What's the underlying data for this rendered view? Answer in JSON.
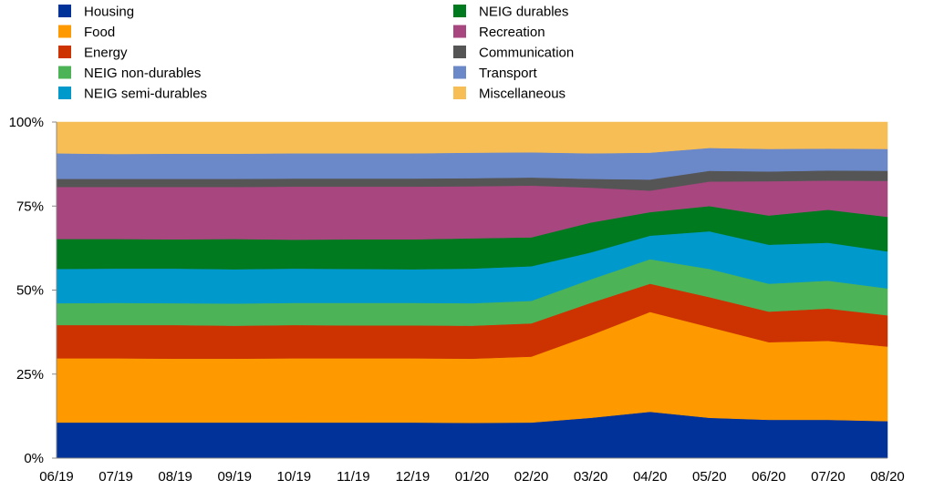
{
  "chart_data": {
    "type": "area",
    "stacked": true,
    "title": "",
    "xlabel": "",
    "ylabel": "",
    "ylim": [
      0,
      100
    ],
    "y_ticks": [
      "0%",
      "25%",
      "50%",
      "75%",
      "100%"
    ],
    "grid": false,
    "legend_position": "top",
    "categories": [
      "06/19",
      "07/19",
      "08/19",
      "09/19",
      "10/19",
      "11/19",
      "12/19",
      "01/20",
      "02/20",
      "03/20",
      "04/20",
      "05/20",
      "06/20",
      "07/20",
      "08/20"
    ],
    "series": [
      {
        "name": "Housing",
        "color": "#003299",
        "values": [
          10.6,
          10.6,
          10.6,
          10.6,
          10.6,
          10.6,
          10.6,
          10.5,
          10.6,
          12.0,
          13.8,
          12.0,
          11.4,
          11.4,
          11.0
        ]
      },
      {
        "name": "Food",
        "color": "#FF9900",
        "values": [
          19.1,
          19.1,
          19.0,
          19.0,
          19.1,
          19.1,
          19.1,
          19.1,
          19.6,
          24.6,
          29.7,
          27.0,
          23.1,
          23.5,
          22.2
        ]
      },
      {
        "name": "Energy",
        "color": "#CC3300",
        "values": [
          9.9,
          9.9,
          10.0,
          9.8,
          9.9,
          9.8,
          9.8,
          9.8,
          9.9,
          9.6,
          8.4,
          8.9,
          9.1,
          9.6,
          9.3
        ]
      },
      {
        "name": "NEIG non-durables",
        "color": "#4DB357",
        "values": [
          6.5,
          6.6,
          6.5,
          6.6,
          6.6,
          6.7,
          6.7,
          6.7,
          6.7,
          7.0,
          7.3,
          8.4,
          8.3,
          8.3,
          8.0
        ]
      },
      {
        "name": "NEIG semi-durables",
        "color": "#0099CC",
        "values": [
          10.2,
          10.2,
          10.3,
          10.2,
          10.2,
          10.1,
          10.0,
          10.3,
          10.3,
          8.0,
          7.0,
          11.2,
          11.6,
          11.3,
          11.0
        ]
      },
      {
        "name": "NEIG durables",
        "color": "#007A1F",
        "values": [
          8.9,
          8.8,
          8.7,
          9.0,
          8.6,
          8.8,
          8.9,
          9.0,
          8.6,
          8.9,
          7.0,
          7.5,
          8.7,
          9.8,
          10.3
        ]
      },
      {
        "name": "Recreation",
        "color": "#A8467F",
        "values": [
          15.5,
          15.5,
          15.6,
          15.5,
          15.8,
          15.7,
          15.7,
          15.5,
          15.4,
          10.4,
          6.4,
          7.3,
          10.2,
          8.7,
          10.7
        ]
      },
      {
        "name": "Communication",
        "color": "#555555",
        "values": [
          2.4,
          2.4,
          2.4,
          2.4,
          2.4,
          2.4,
          2.4,
          2.4,
          2.4,
          2.6,
          3.3,
          3.2,
          2.9,
          3.0,
          3.0
        ]
      },
      {
        "name": "Transport",
        "color": "#6B88C8",
        "values": [
          7.6,
          7.4,
          7.5,
          7.5,
          7.5,
          7.5,
          7.5,
          7.6,
          7.5,
          7.6,
          8.0,
          6.8,
          6.7,
          6.5,
          6.5
        ]
      },
      {
        "name": "Miscellaneous",
        "color": "#F7BE56",
        "values": [
          9.3,
          9.5,
          9.4,
          9.4,
          9.3,
          9.3,
          9.3,
          9.1,
          9.0,
          9.3,
          9.1,
          7.7,
          8.0,
          7.9,
          8.0
        ]
      }
    ]
  }
}
